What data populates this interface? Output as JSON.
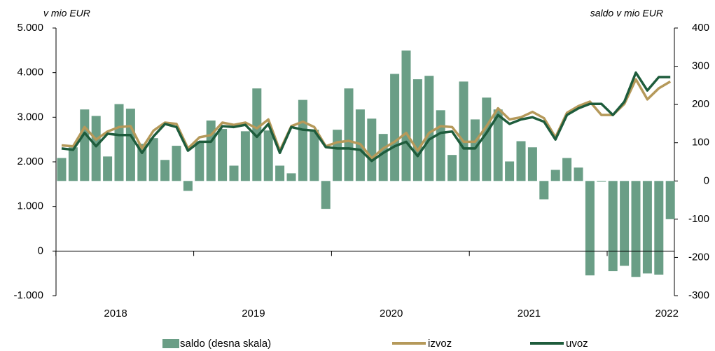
{
  "chart_data": {
    "type": "bar-line",
    "y_label": "v mio EUR",
    "y2_label": "saldo v mio EUR",
    "categories": [
      null,
      null,
      null,
      null,
      "2018",
      null,
      null,
      null,
      null,
      null,
      null,
      null,
      null,
      null,
      null,
      null,
      "2019",
      null,
      null,
      null,
      null,
      null,
      null,
      null,
      null,
      null,
      null,
      null,
      "2020",
      null,
      null,
      null,
      null,
      null,
      null,
      null,
      null,
      null,
      null,
      null,
      "2021",
      null,
      null,
      null,
      null,
      null,
      null,
      null,
      null,
      null,
      null,
      null,
      "2022",
      null
    ],
    "series": [
      {
        "name": "saldo (desna skala)",
        "type": "bar",
        "axis": "y2",
        "color": "#6a9e86",
        "values": [
          60,
          88,
          187,
          170,
          64,
          201,
          189,
          97,
          112,
          55,
          92,
          -26,
          104,
          158,
          136,
          40,
          130,
          242,
          132,
          40,
          20,
          212,
          134,
          -73,
          134,
          242,
          187,
          163,
          123,
          280,
          341,
          266,
          275,
          185,
          68,
          260,
          161,
          218,
          187,
          51,
          104,
          88,
          -48,
          29,
          60,
          35,
          -247,
          -2,
          -236,
          -222,
          -251,
          -242,
          -245,
          -100
        ]
      },
      {
        "name": "izvoz",
        "type": "line",
        "color": "#b5995a",
        "values": [
          2370,
          2350,
          2780,
          2500,
          2680,
          2780,
          2800,
          2300,
          2700,
          2880,
          2850,
          2300,
          2550,
          2600,
          2880,
          2830,
          2880,
          2750,
          2950,
          2250,
          2800,
          2900,
          2780,
          2350,
          2440,
          2470,
          2400,
          2080,
          2300,
          2450,
          2650,
          2250,
          2650,
          2800,
          2780,
          2450,
          2450,
          2800,
          3200,
          2950,
          3000,
          3120,
          2980,
          2550,
          3100,
          3250,
          3350,
          3050,
          3050,
          3300,
          3850,
          3400,
          3650,
          3800
        ]
      },
      {
        "name": "uvoz",
        "type": "line",
        "color": "#1e5c3c",
        "values": [
          2300,
          2270,
          2650,
          2350,
          2630,
          2600,
          2600,
          2200,
          2570,
          2850,
          2780,
          2250,
          2450,
          2450,
          2800,
          2780,
          2830,
          2560,
          2850,
          2200,
          2780,
          2720,
          2700,
          2330,
          2300,
          2300,
          2270,
          2020,
          2200,
          2350,
          2450,
          2130,
          2500,
          2650,
          2680,
          2300,
          2300,
          2650,
          3050,
          2850,
          2950,
          3000,
          2900,
          2500,
          3050,
          3200,
          3300,
          3300,
          3050,
          3350,
          4000,
          3600,
          3900,
          3900
        ]
      }
    ],
    "ylim": [
      -1000,
      5000
    ],
    "yticks": [
      {
        "value": -1000,
        "label": "-1.000"
      },
      0,
      {
        "value": 1000,
        "label": "1.000"
      },
      {
        "value": 2000,
        "label": "2.000"
      },
      {
        "value": 3000,
        "label": "3.000"
      },
      {
        "value": 4000,
        "label": "4.000"
      },
      {
        "value": 5000,
        "label": "5.000"
      }
    ],
    "y2lim": [
      -300,
      400
    ],
    "y2ticks": [
      -300,
      -200,
      -100,
      0,
      100,
      200,
      300,
      400
    ],
    "legend": "bottom"
  }
}
